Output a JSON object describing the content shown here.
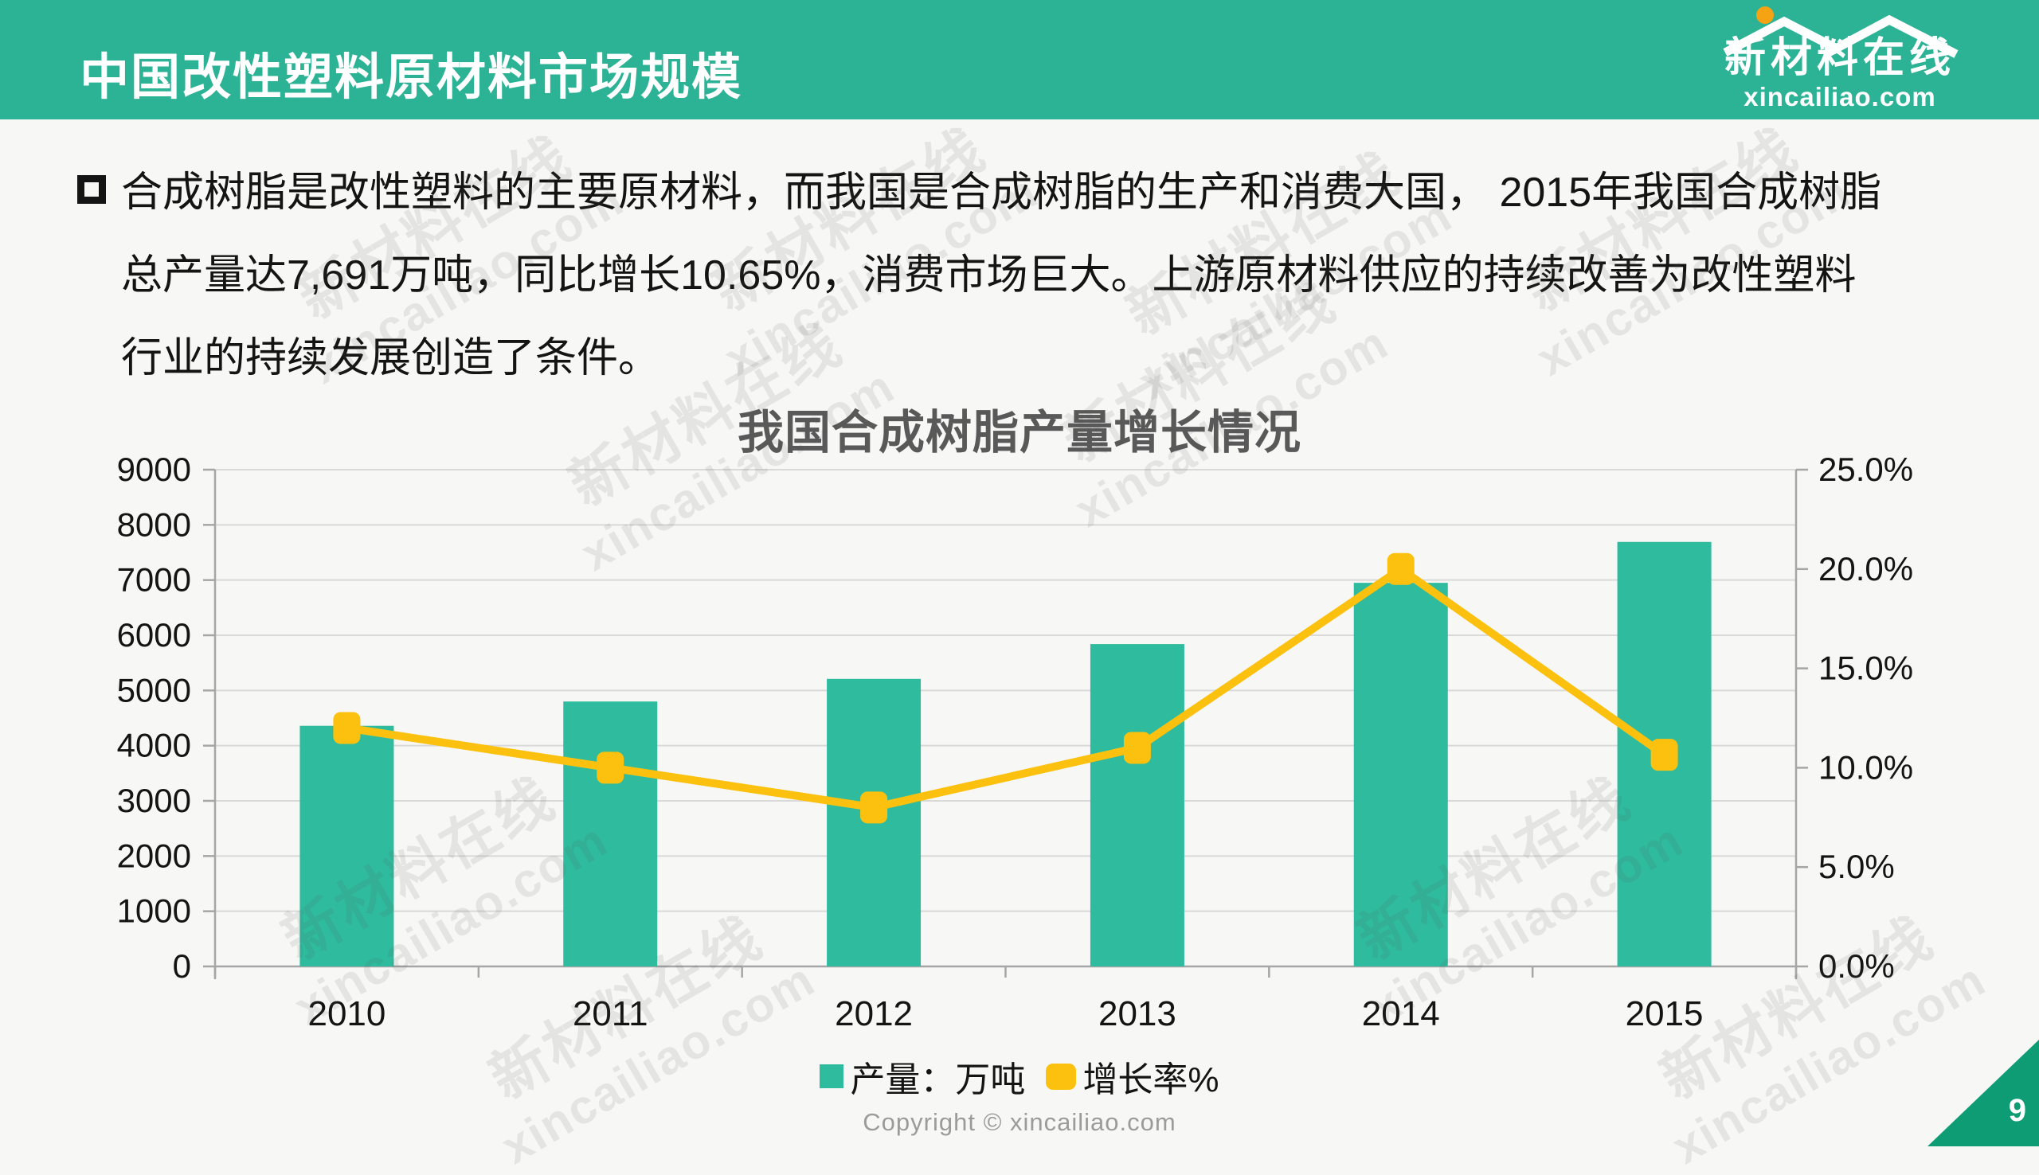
{
  "slide": {
    "header": {
      "title": "中国改性塑料原材料市场规模"
    },
    "logo": {
      "name": "新材料在线",
      "domain": "xincailiao.com"
    },
    "bullet": {
      "lines": [
        "合成树脂是改性塑料的主要原材料，而我国是合成树脂的生产和消费大国， 2015年我国合成树脂",
        "总产量达7,691万吨，同比增长10.65%，消费市场巨大。上游原材料供应的持续改善为改性塑料",
        "行业的持续发展创造了条件。"
      ]
    },
    "footer": {
      "copyright": "Copyright © xincailiao.com",
      "page_number": "9"
    },
    "watermark": {
      "line1": "新材料在线",
      "line2": "xincailiao.com"
    }
  },
  "chart_data": {
    "type": "bar",
    "title": "我国合成树脂产量增长情况",
    "categories": [
      "2010",
      "2011",
      "2012",
      "2013",
      "2014",
      "2015"
    ],
    "series": [
      {
        "name": "产量：万吨",
        "type": "bar",
        "axis": "left",
        "values": [
          4360,
          4800,
          5210,
          5840,
          6950,
          7691
        ],
        "color": "#2fbb9e"
      },
      {
        "name": "增长率%",
        "type": "line",
        "axis": "right",
        "values": [
          12.0,
          10.0,
          8.0,
          11.0,
          20.0,
          10.65
        ],
        "color": "#fcc10e"
      }
    ],
    "left_axis": {
      "min": 0,
      "max": 9000,
      "step": 1000,
      "tick_labels": [
        "0",
        "1000",
        "2000",
        "3000",
        "4000",
        "5000",
        "6000",
        "7000",
        "8000",
        "9000"
      ]
    },
    "right_axis": {
      "min": 0,
      "max": 25,
      "step": 5,
      "tick_labels": [
        "0.0%",
        "5.0%",
        "10.0%",
        "15.0%",
        "20.0%",
        "25.0%"
      ]
    },
    "legend_position": "bottom",
    "grid": true
  },
  "colors": {
    "header_green": "#2cb294",
    "bar_teal": "#2fbb9e",
    "line_yellow": "#fcc10e",
    "corner_green": "#0d9c74",
    "chart_title_gray": "#595959",
    "copyright_gray": "#9b9b9b",
    "grid_gray": "#d9d9d9",
    "axis_gray": "#a6a6a6"
  }
}
